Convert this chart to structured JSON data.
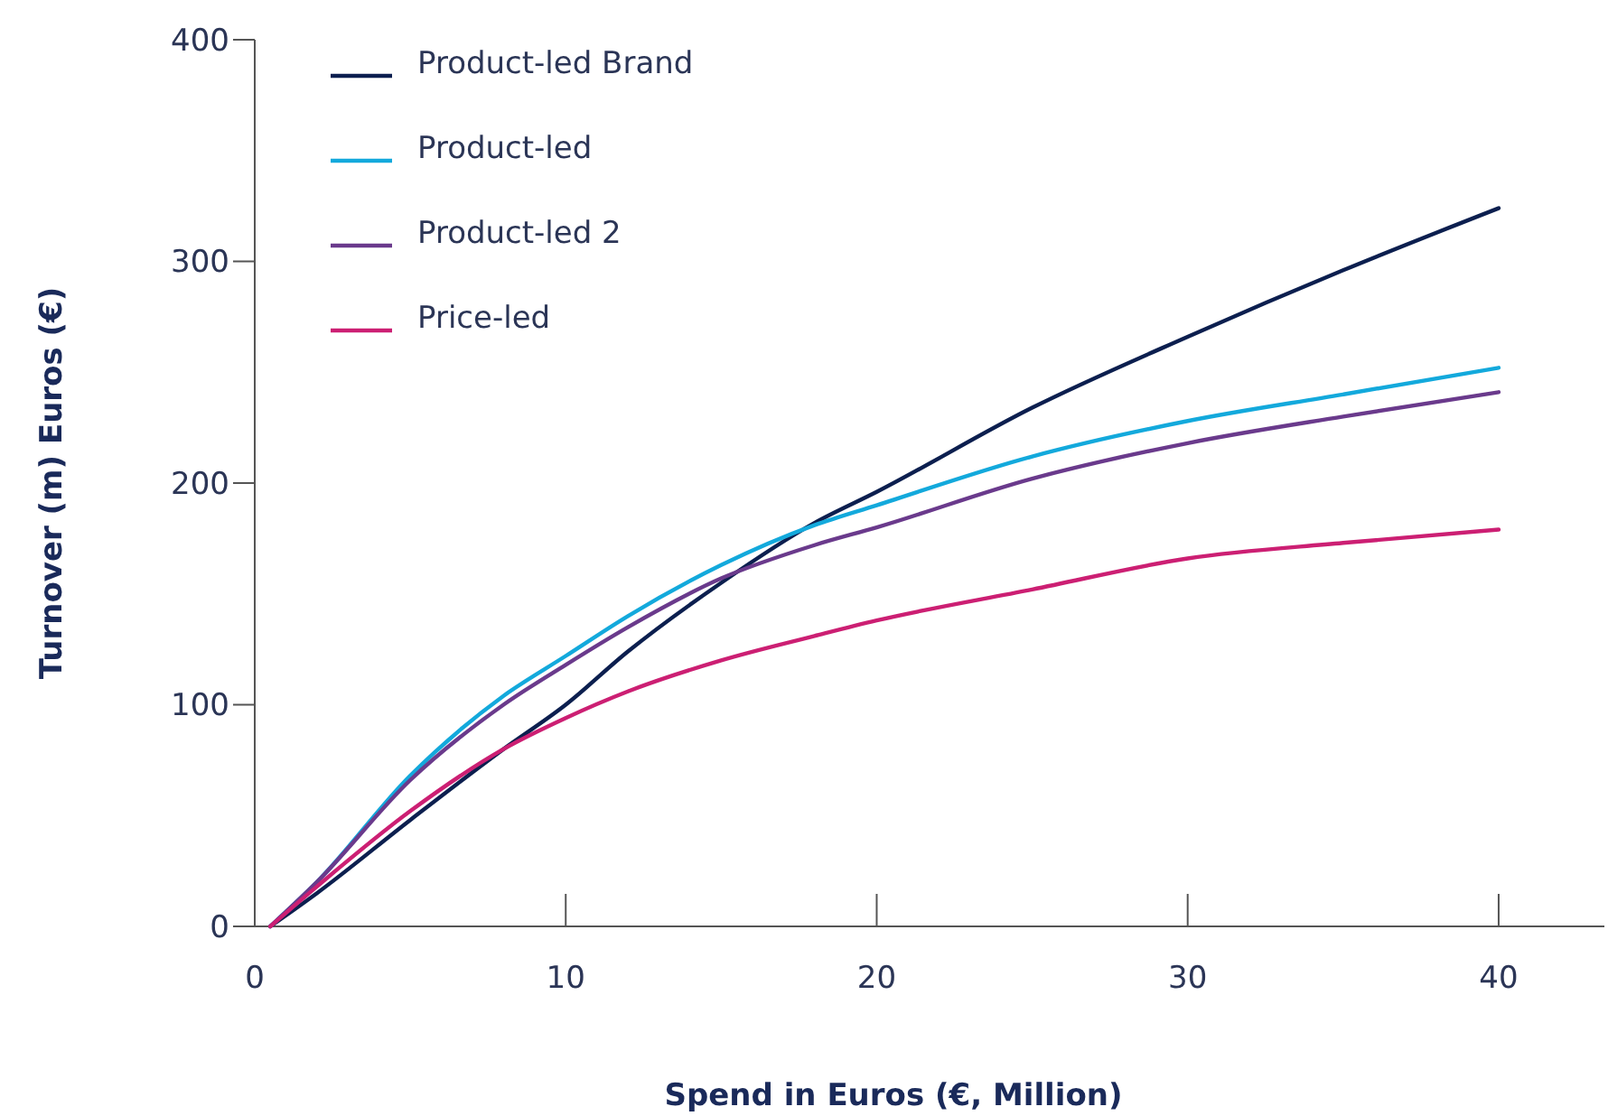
{
  "chart_data": {
    "type": "line",
    "xlabel": "Spend in Euros (€, Million)",
    "ylabel": "Turnover (m) Euros (€)",
    "xlim": [
      0,
      43.4
    ],
    "xticks": [
      0,
      10,
      20,
      30,
      40
    ],
    "ylim": [
      0,
      400
    ],
    "yticks": [
      0,
      100,
      200,
      300,
      400
    ],
    "grid": false,
    "legend": "top left",
    "marker": "none",
    "line_style": "solid",
    "series": [
      {
        "name": "Product-led Brand",
        "color": "#0c1f4f",
        "x": [
          0.5,
          2,
          5,
          8,
          10,
          12,
          15,
          18,
          20,
          25,
          30,
          35,
          40
        ],
        "values": [
          0,
          15,
          48,
          80,
          100,
          124,
          155,
          182,
          196,
          234,
          266,
          296,
          324
        ]
      },
      {
        "name": "Product-led",
        "color": "#13a9dc",
        "x": [
          0.5,
          2,
          5,
          8,
          10,
          12,
          15,
          18,
          20,
          25,
          30,
          35,
          40
        ],
        "values": [
          0,
          20,
          68,
          104,
          122,
          140,
          163,
          181,
          190,
          212,
          228,
          240,
          252
        ]
      },
      {
        "name": "Product-led 2",
        "color": "#6a3a8c",
        "x": [
          0.5,
          2,
          5,
          8,
          10,
          12,
          15,
          18,
          20,
          25,
          30,
          35,
          40
        ],
        "values": [
          0,
          20,
          66,
          100,
          118,
          135,
          157,
          172,
          180,
          202,
          218,
          230,
          241
        ]
      },
      {
        "name": "Price-led",
        "color": "#cc1f73",
        "x": [
          0.5,
          2,
          5,
          8,
          10,
          12,
          15,
          18,
          20,
          25,
          30,
          35,
          40
        ],
        "values": [
          0,
          18,
          52,
          80,
          94,
          106,
          120,
          131,
          138,
          152,
          166,
          173,
          179
        ]
      }
    ]
  }
}
